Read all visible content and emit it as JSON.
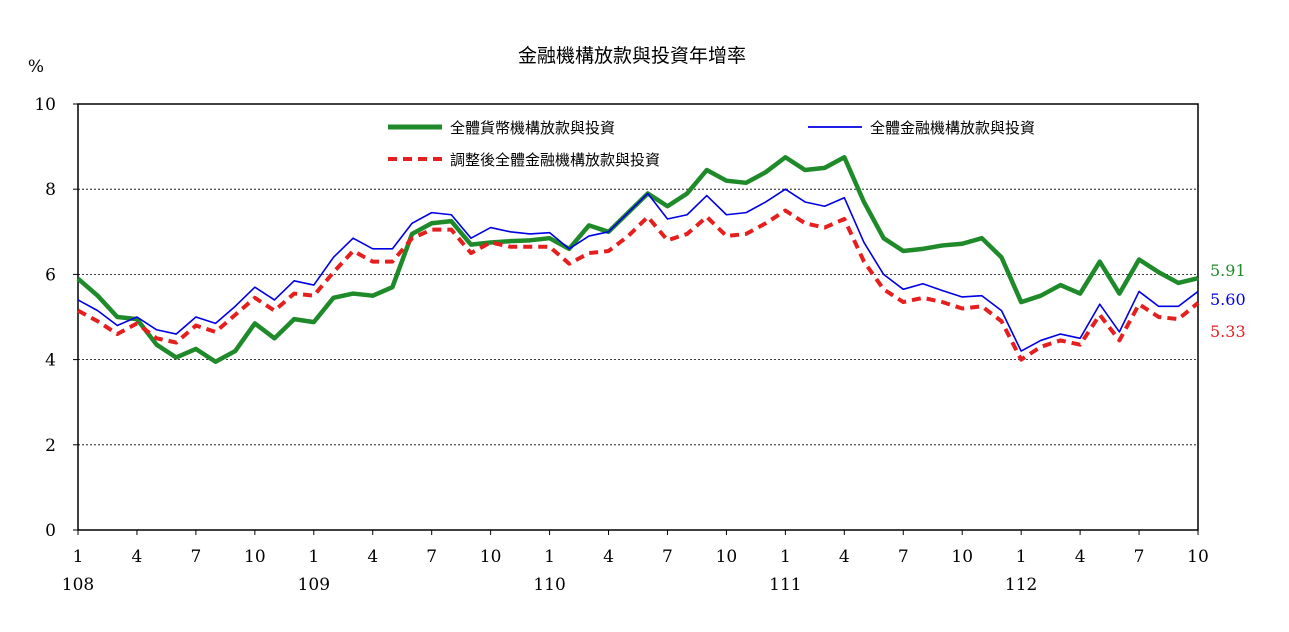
{
  "chart_data": {
    "type": "line",
    "title": "金融機構放款與投資年增率",
    "unit": "%",
    "ylim": [
      0,
      10
    ],
    "y_ticks": [
      "0",
      "2",
      "4",
      "6",
      "8",
      "10"
    ],
    "grid": "horizontal",
    "legend_position": "top",
    "x_ticks": [
      {
        "month": "1",
        "year": "108",
        "index": 0
      },
      {
        "month": "4",
        "year": "",
        "index": 3
      },
      {
        "month": "7",
        "year": "",
        "index": 6
      },
      {
        "month": "10",
        "year": "",
        "index": 9
      },
      {
        "month": "1",
        "year": "109",
        "index": 12
      },
      {
        "month": "4",
        "year": "",
        "index": 15
      },
      {
        "month": "7",
        "year": "",
        "index": 18
      },
      {
        "month": "10",
        "year": "",
        "index": 21
      },
      {
        "month": "1",
        "year": "110",
        "index": 24
      },
      {
        "month": "4",
        "year": "",
        "index": 27
      },
      {
        "month": "7",
        "year": "",
        "index": 30
      },
      {
        "month": "10",
        "year": "",
        "index": 33
      },
      {
        "month": "1",
        "year": "111",
        "index": 36
      },
      {
        "month": "4",
        "year": "",
        "index": 39
      },
      {
        "month": "7",
        "year": "",
        "index": 42
      },
      {
        "month": "10",
        "year": "",
        "index": 45
      },
      {
        "month": "1",
        "year": "112",
        "index": 48
      },
      {
        "month": "4",
        "year": "",
        "index": 51
      },
      {
        "month": "7",
        "year": "",
        "index": 54
      },
      {
        "month": "10",
        "year": "",
        "index": 57
      }
    ],
    "series": [
      {
        "name": "全體貨幣機構放款與投資",
        "color": "#1f8a2a",
        "style": "solid-thick",
        "end_label": "5.91",
        "values": [
          5.9,
          5.5,
          5.0,
          4.95,
          4.35,
          4.05,
          4.25,
          3.95,
          4.2,
          4.85,
          4.5,
          4.95,
          4.88,
          5.45,
          5.55,
          5.5,
          5.7,
          6.95,
          7.2,
          7.25,
          6.7,
          6.75,
          6.78,
          6.8,
          6.85,
          6.6,
          7.15,
          7.0,
          7.45,
          7.9,
          7.6,
          7.9,
          8.45,
          8.2,
          8.15,
          8.4,
          8.75,
          8.45,
          8.5,
          8.75,
          7.7,
          6.85,
          6.55,
          6.6,
          6.68,
          6.72,
          6.85,
          6.4,
          5.35,
          5.5,
          5.75,
          5.55,
          6.3,
          5.55,
          6.35,
          6.05,
          5.8,
          5.91
        ]
      },
      {
        "name": "全體金融機構放款與投資",
        "color": "#0000e6",
        "style": "solid-thin",
        "end_label": "5.60",
        "values": [
          5.4,
          5.15,
          4.8,
          5.0,
          4.7,
          4.6,
          5.0,
          4.85,
          5.25,
          5.7,
          5.4,
          5.85,
          5.75,
          6.4,
          6.85,
          6.6,
          6.6,
          7.2,
          7.45,
          7.4,
          6.85,
          7.1,
          7.0,
          6.95,
          6.98,
          6.6,
          6.9,
          7.0,
          7.45,
          7.9,
          7.3,
          7.4,
          7.85,
          7.4,
          7.45,
          7.7,
          8.0,
          7.7,
          7.6,
          7.8,
          6.75,
          6.0,
          5.65,
          5.78,
          5.62,
          5.47,
          5.5,
          5.15,
          4.2,
          4.45,
          4.6,
          4.5,
          5.3,
          4.65,
          5.6,
          5.25,
          5.25,
          5.6
        ]
      },
      {
        "name": "調整後全體金融機構放款與投資",
        "color": "#e61e1e",
        "style": "dashed-thick",
        "end_label": "5.33",
        "values": [
          5.15,
          4.9,
          4.6,
          4.85,
          4.5,
          4.4,
          4.8,
          4.65,
          5.05,
          5.45,
          5.15,
          5.55,
          5.5,
          6.05,
          6.55,
          6.3,
          6.3,
          6.85,
          7.05,
          7.05,
          6.5,
          6.75,
          6.65,
          6.65,
          6.65,
          6.25,
          6.5,
          6.55,
          6.9,
          7.35,
          6.8,
          6.95,
          7.35,
          6.9,
          6.95,
          7.2,
          7.5,
          7.2,
          7.1,
          7.3,
          6.3,
          5.65,
          5.35,
          5.45,
          5.35,
          5.2,
          5.25,
          4.9,
          4.0,
          4.3,
          4.45,
          4.35,
          5.05,
          4.45,
          5.3,
          5.0,
          4.95,
          5.33
        ]
      }
    ]
  }
}
